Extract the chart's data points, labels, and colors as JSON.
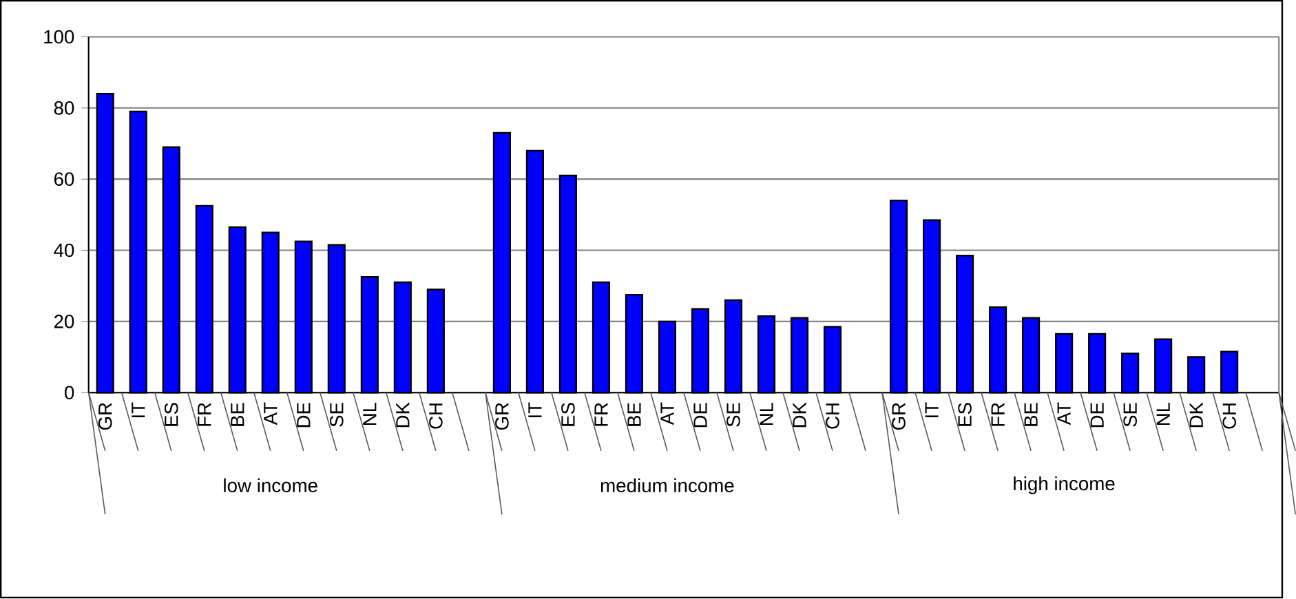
{
  "chart_data": {
    "type": "bar",
    "categories": [
      "GR",
      "IT",
      "ES",
      "FR",
      "BE",
      "AT",
      "DE",
      "SE",
      "NL",
      "DK",
      "CH",
      null,
      "GR",
      "IT",
      "ES",
      "FR",
      "BE",
      "AT",
      "DE",
      "SE",
      "NL",
      "DK",
      "CH",
      null,
      "GR",
      "IT",
      "ES",
      "FR",
      "BE",
      "AT",
      "DE",
      "SE",
      "NL",
      "DK",
      "CH",
      null
    ],
    "values": [
      84,
      79,
      69,
      52.5,
      46.5,
      45,
      42.5,
      41.5,
      32.5,
      31,
      29,
      null,
      73,
      68,
      61,
      31,
      27.5,
      20,
      23.5,
      26,
      21.5,
      21,
      18.5,
      null,
      54,
      48.5,
      38.5,
      24,
      21,
      16.5,
      16.5,
      11,
      15,
      10,
      11.5,
      null
    ],
    "color": "#0000ff",
    "ylim": [
      0,
      100
    ],
    "yticks": [
      0,
      20,
      40,
      60,
      80,
      100
    ],
    "grid": "y",
    "annotations": [
      "low  income",
      "medium income",
      "high income"
    ]
  }
}
